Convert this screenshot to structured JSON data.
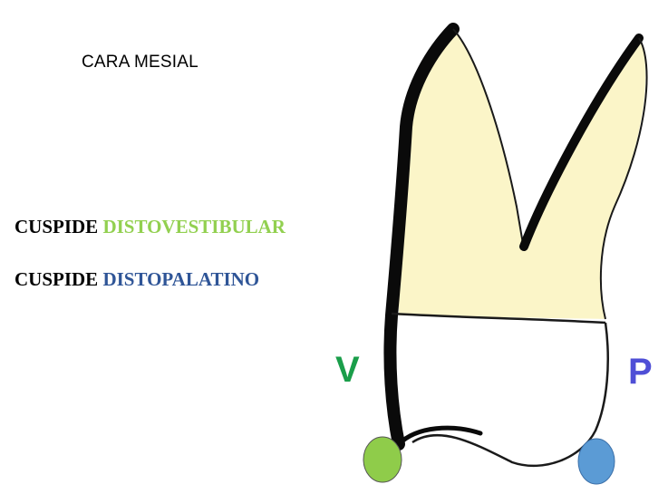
{
  "title": "CARA MESIAL",
  "cusps": [
    {
      "prefix": "CUSPIDE",
      "name": "DISTOVESTIBULAR",
      "color": "#92d050"
    },
    {
      "prefix": "CUSPIDE",
      "name": "DISTOPALATINO",
      "color": "#2f5597"
    }
  ],
  "sides": {
    "vestibular": "V",
    "palatal": "P"
  },
  "colors": {
    "root_fill": "#fbf5c8",
    "outline": "#0a0a0a",
    "vestibular_label": "#1a9e4a",
    "palatal_label": "#4f4fd6",
    "vestibular_cusp_marker": "#8fcc4a",
    "palatal_cusp_marker": "#5b9bd5"
  }
}
